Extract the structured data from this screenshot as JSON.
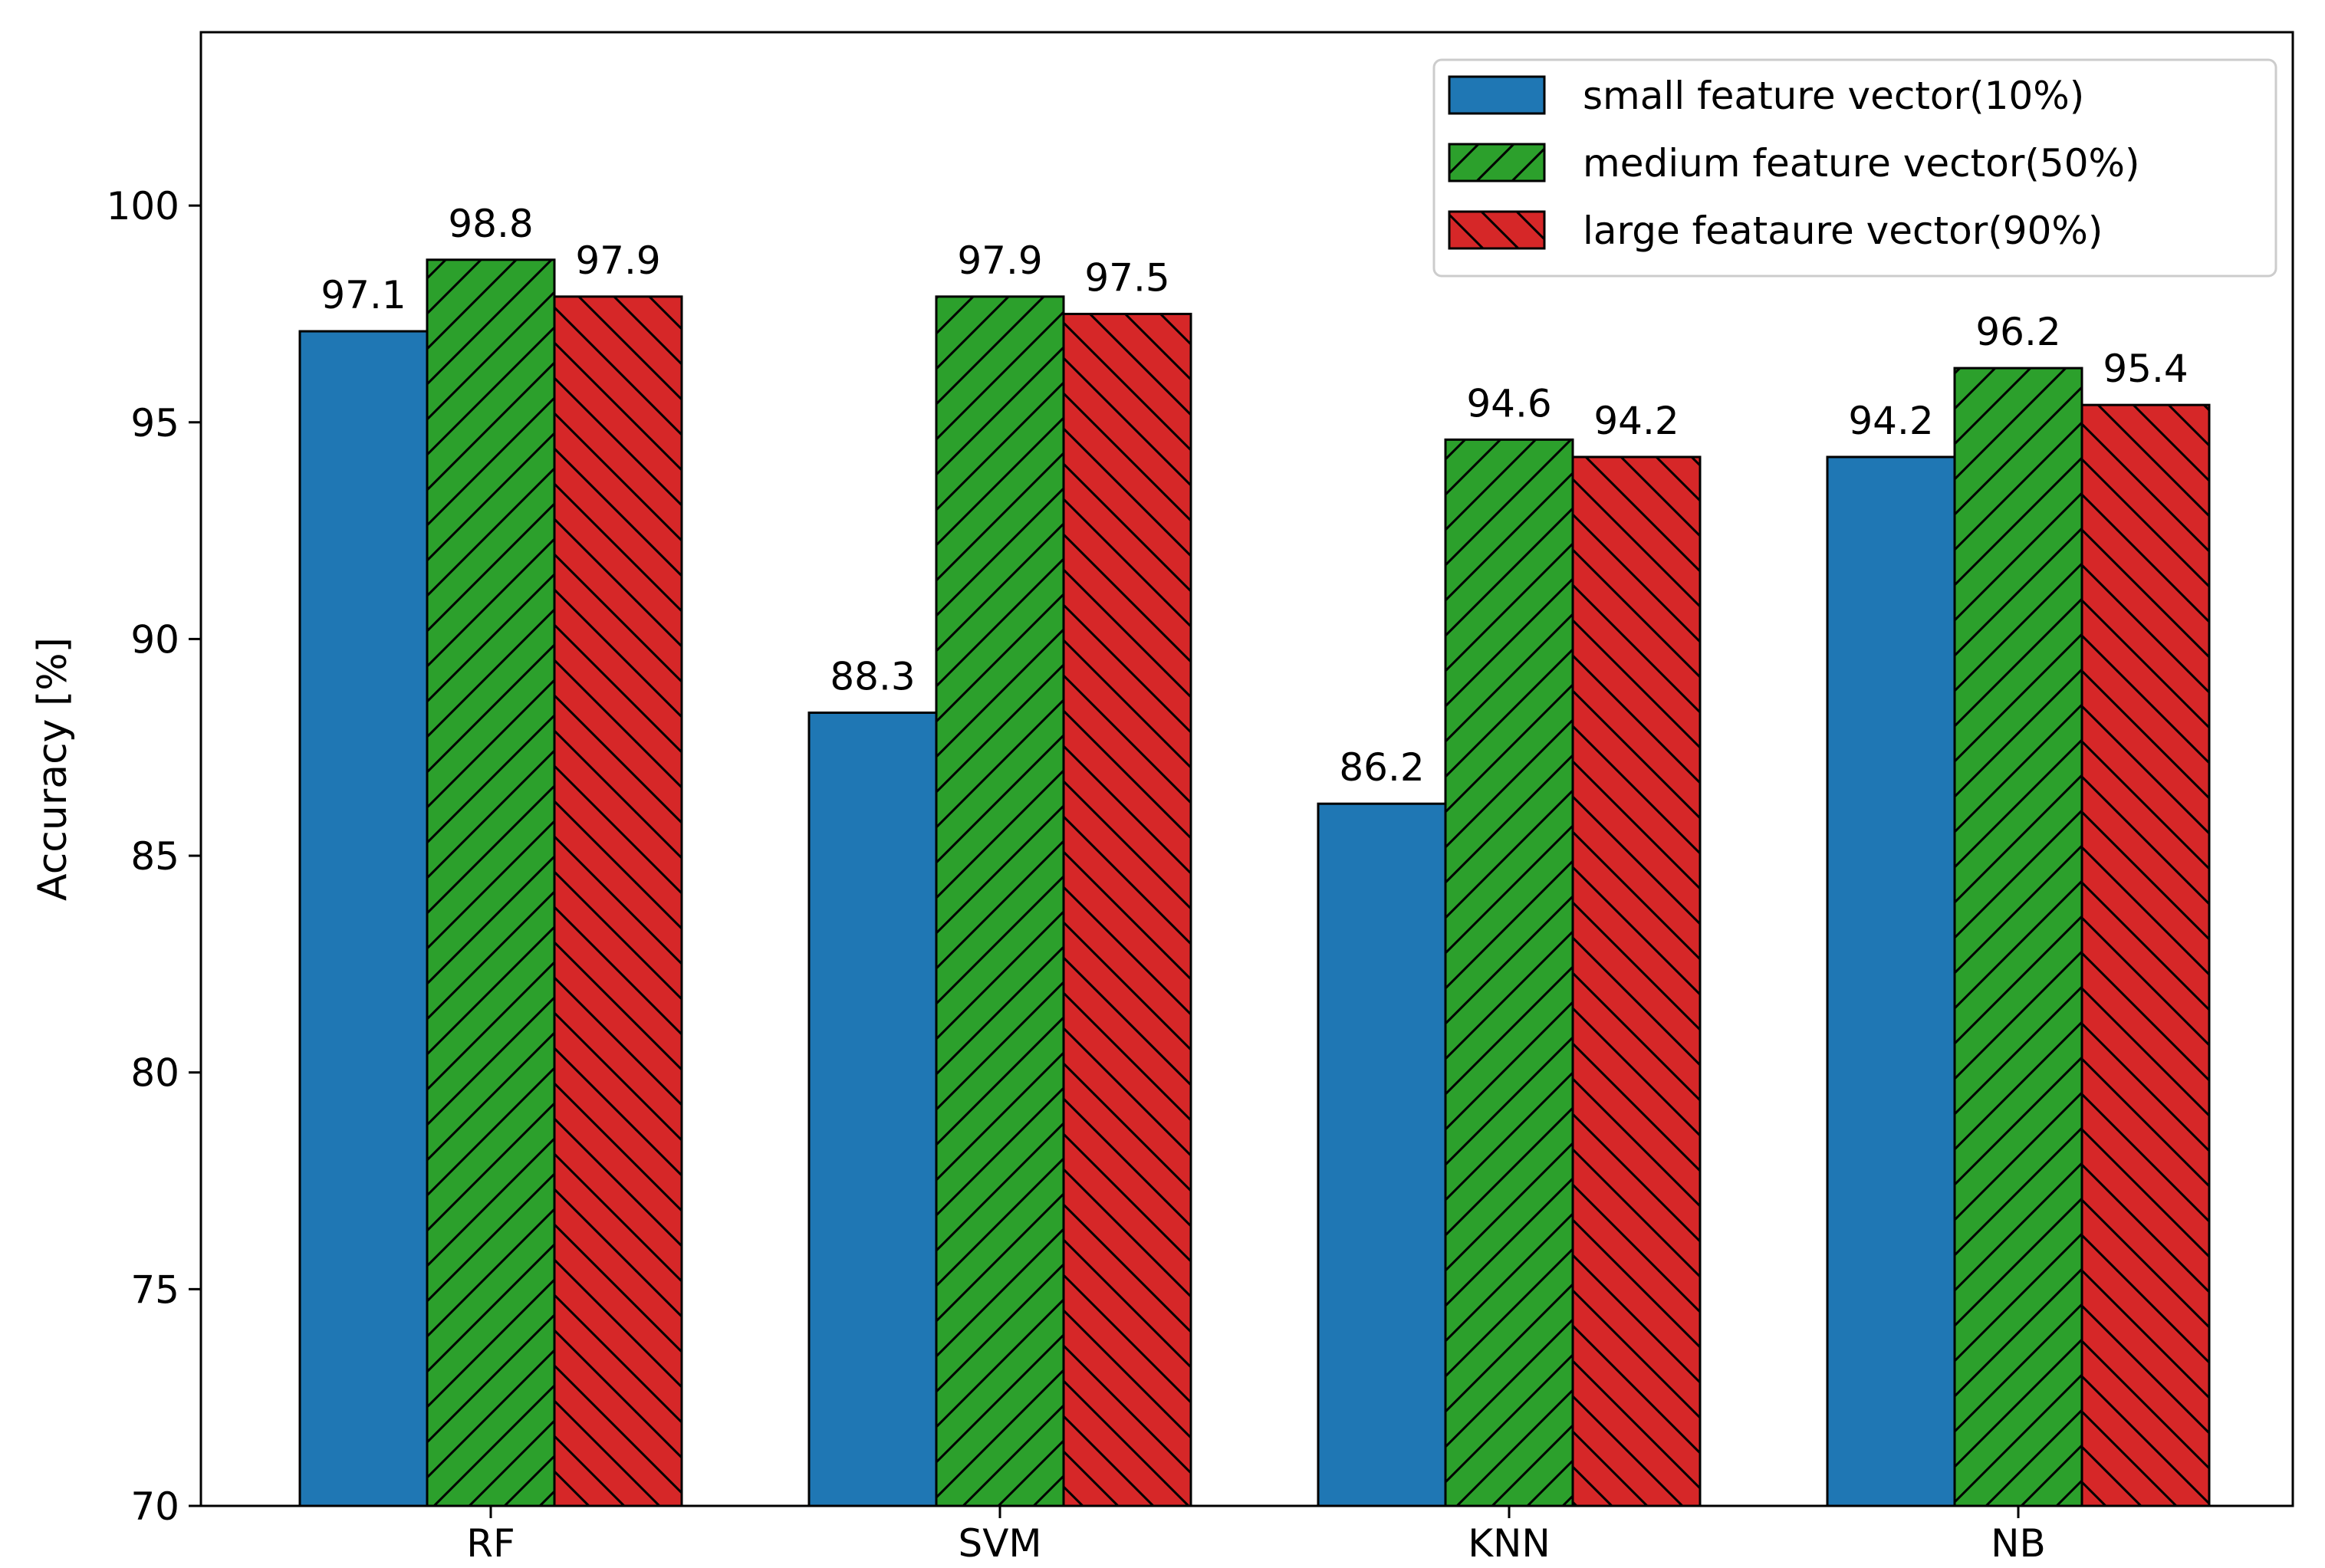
{
  "chart_data": {
    "type": "bar",
    "title": "",
    "xlabel": "",
    "ylabel": "Accuracy [%]",
    "ylim": [
      70,
      104
    ],
    "yticks": [
      70,
      75,
      80,
      85,
      90,
      95,
      100
    ],
    "categories": [
      "RF",
      "SVM",
      "KNN",
      "NB"
    ],
    "series": [
      {
        "name": "small feature vector(10%)",
        "values": [
          97.1,
          88.3,
          86.2,
          94.2
        ],
        "labels": [
          "97.1",
          "88.3",
          "86.2",
          "94.2"
        ],
        "color": "#1f77b4",
        "hatch": "none"
      },
      {
        "name": "medium feature vector(50%)",
        "values": [
          98.75,
          97.9,
          94.6,
          96.25
        ],
        "labels": [
          "98.8",
          "97.9",
          "94.6",
          "96.2"
        ],
        "color": "#2ca02c",
        "hatch": "forward"
      },
      {
        "name": "large feataure vector(90%)",
        "values": [
          97.9,
          97.5,
          94.2,
          95.4
        ],
        "labels": [
          "97.9",
          "97.5",
          "94.2",
          "95.4"
        ],
        "color": "#d62728",
        "hatch": "back"
      }
    ],
    "legend": "top-right",
    "grid": false
  }
}
